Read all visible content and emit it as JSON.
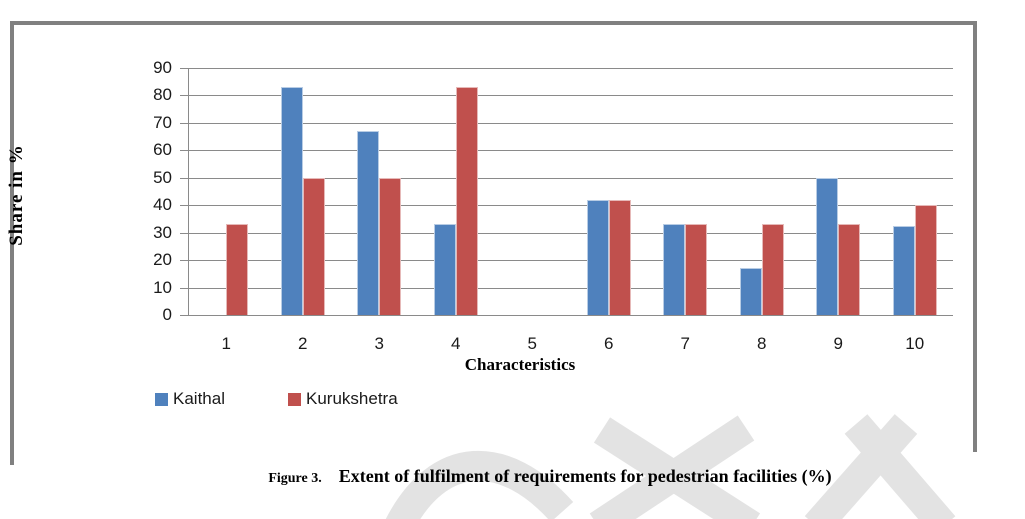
{
  "figure": {
    "caption_label": "Figure 3.",
    "caption_text": "Extent of fulfilment of requirements for pedestrian facilities (%)"
  },
  "chart_data": {
    "type": "bar",
    "title": "",
    "xlabel": "Characteristics",
    "ylabel": "Share in %",
    "ylim": [
      0,
      90
    ],
    "ytick_step": 10,
    "grid": true,
    "legend_position": "bottom-left",
    "categories": [
      "1",
      "2",
      "3",
      "4",
      "5",
      "6",
      "7",
      "8",
      "9",
      "10"
    ],
    "series": [
      {
        "name": "Kaithal",
        "color": "#4F81BD",
        "border_color": "#B8CCE4",
        "values": [
          0,
          83,
          67,
          33,
          0,
          42,
          33,
          17,
          50,
          32.5
        ]
      },
      {
        "name": "Kurukshetra",
        "color": "#C0504D",
        "border_color": "#E6B9B8",
        "values": [
          33,
          50,
          50,
          83,
          0,
          42,
          33,
          33,
          33,
          40
        ]
      }
    ]
  },
  "colors": {
    "frame": "#808080",
    "gridline": "#8a8a8a",
    "watermark": "#e3e3e3"
  }
}
